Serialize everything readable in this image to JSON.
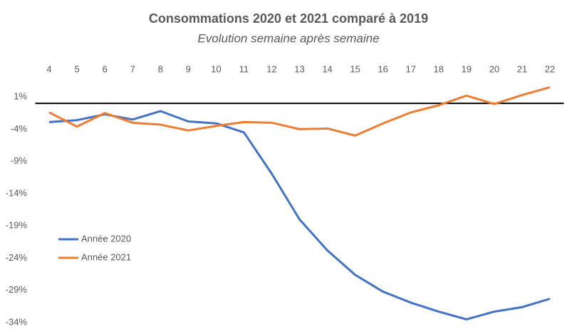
{
  "chart_data": {
    "type": "line",
    "title": "Consommations 2020 et 2021 comparé à 2019",
    "subtitle": "Evolution semaine après semaine",
    "x": [
      4,
      5,
      6,
      7,
      8,
      9,
      10,
      11,
      12,
      13,
      14,
      15,
      16,
      17,
      18,
      19,
      20,
      21,
      22
    ],
    "xlim": [
      3.5,
      22.5
    ],
    "xticks": [
      4,
      5,
      6,
      7,
      8,
      9,
      10,
      11,
      12,
      13,
      14,
      15,
      16,
      17,
      18,
      19,
      20,
      21,
      22
    ],
    "ylim": [
      -34,
      3
    ],
    "yticks": [
      {
        "value": 1,
        "label": "1%"
      },
      {
        "value": -4,
        "label": "-4%"
      },
      {
        "value": -9,
        "label": "-9%"
      },
      {
        "value": -14,
        "label": "-14%"
      },
      {
        "value": -19,
        "label": "-19%"
      },
      {
        "value": -24,
        "label": "-24%"
      },
      {
        "value": -29,
        "label": "-29%"
      },
      {
        "value": -34,
        "label": "-34%"
      }
    ],
    "grid": false,
    "legend": "left",
    "series": [
      {
        "name": "Année 2020",
        "color": "#4472c4",
        "values": [
          -2.9,
          -2.6,
          -1.7,
          -2.5,
          -1.2,
          -2.8,
          -3.1,
          -4.5,
          -10.9,
          -18.0,
          -22.8,
          -26.6,
          -29.2,
          -30.9,
          -32.3,
          -33.5,
          -32.3,
          -31.6,
          -30.3
        ]
      },
      {
        "name": "Année 2021",
        "color": "#ed7d31",
        "values": [
          -1.4,
          -3.6,
          -1.5,
          -3.0,
          -3.3,
          -4.2,
          -3.5,
          -2.9,
          -3.0,
          -4.0,
          -3.9,
          -5.0,
          -3.1,
          -1.4,
          -0.3,
          1.2,
          -0.1,
          1.3,
          2.5
        ]
      }
    ]
  }
}
